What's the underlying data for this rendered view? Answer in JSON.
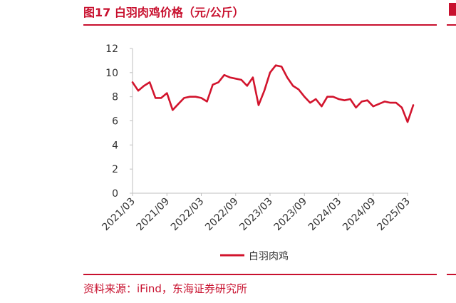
{
  "header": {
    "title": "图17  白羽肉鸡价格（元/公斤）"
  },
  "footer": {
    "source": "资料来源：iFind，东海证券研究所"
  },
  "colors": {
    "accent": "#c8102e",
    "line": "#d2142d",
    "axis": "#bfbfbf",
    "text": "#333333"
  },
  "chart_data": {
    "type": "line",
    "title": "白羽肉鸡价格（元/公斤）",
    "xlabel": "",
    "ylabel": "",
    "ylim": [
      0,
      12
    ],
    "yticks": [
      0,
      2,
      4,
      6,
      8,
      10,
      12
    ],
    "xticks": [
      "2021/03",
      "2021/09",
      "2022/03",
      "2022/09",
      "2023/03",
      "2023/09",
      "2024/03",
      "2024/09",
      "2025/03"
    ],
    "grid": false,
    "legend": {
      "position": "bottom"
    },
    "series": [
      {
        "name": "白羽肉鸡",
        "color": "#d2142d",
        "x": [
          "2021/03",
          "2021/04",
          "2021/05",
          "2021/06",
          "2021/07",
          "2021/08",
          "2021/09",
          "2021/10",
          "2021/11",
          "2021/12",
          "2022/01",
          "2022/02",
          "2022/03",
          "2022/04",
          "2022/05",
          "2022/06",
          "2022/07",
          "2022/08",
          "2022/09",
          "2022/10",
          "2022/11",
          "2022/12",
          "2023/01",
          "2023/02",
          "2023/03",
          "2023/04",
          "2023/05",
          "2023/06",
          "2023/07",
          "2023/08",
          "2023/09",
          "2023/10",
          "2023/11",
          "2023/12",
          "2024/01",
          "2024/02",
          "2024/03",
          "2024/04",
          "2024/05",
          "2024/06",
          "2024/07",
          "2024/08",
          "2024/09",
          "2024/10",
          "2024/11",
          "2024/12",
          "2025/01",
          "2025/02",
          "2025/03",
          "2025/04"
        ],
        "values": [
          9.2,
          8.5,
          8.9,
          9.2,
          7.9,
          7.9,
          8.3,
          6.9,
          7.4,
          7.9,
          8.0,
          8.0,
          7.9,
          7.6,
          9.0,
          9.2,
          9.8,
          9.6,
          9.5,
          9.4,
          8.9,
          9.6,
          7.3,
          8.5,
          10.0,
          10.6,
          10.5,
          9.6,
          8.9,
          8.6,
          8.0,
          7.5,
          7.8,
          7.2,
          8.0,
          8.0,
          7.8,
          7.7,
          7.8,
          7.1,
          7.6,
          7.7,
          7.2,
          7.4,
          7.6,
          7.5,
          7.5,
          7.1,
          5.9,
          7.3
        ]
      }
    ]
  }
}
